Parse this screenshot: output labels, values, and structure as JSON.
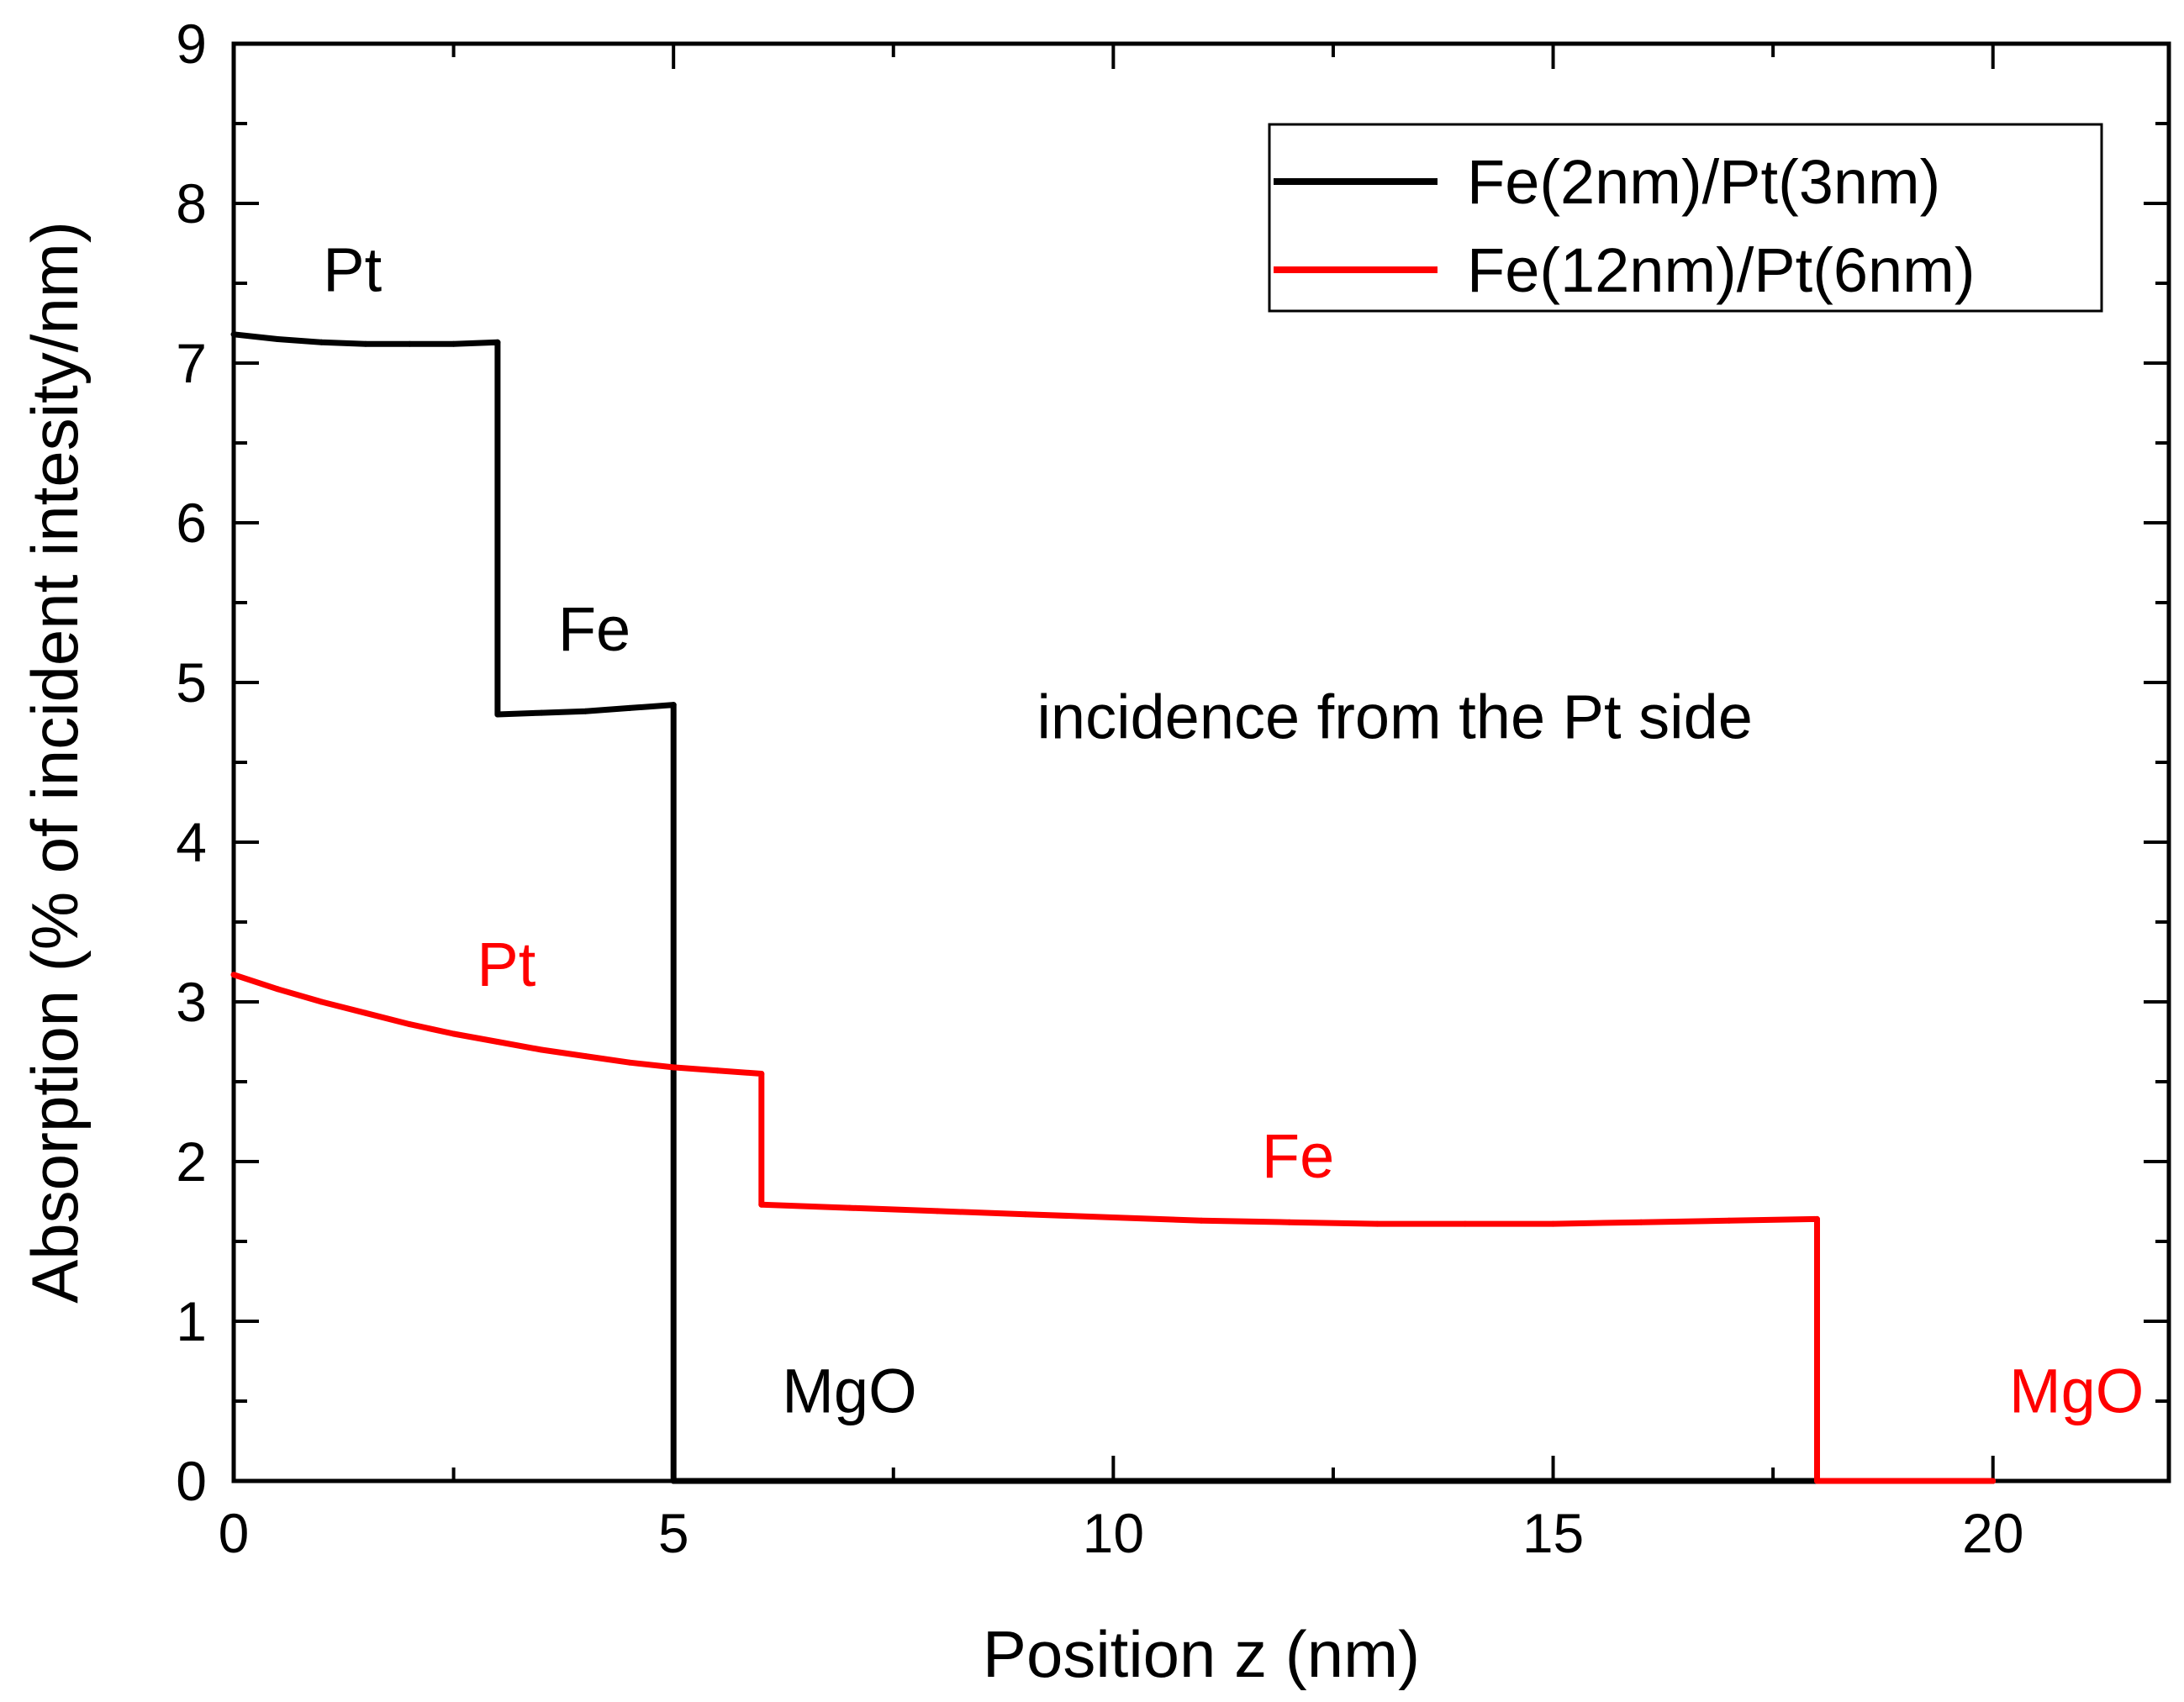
{
  "chart_data": {
    "type": "line",
    "title": "",
    "xlabel": "Position z (nm)",
    "ylabel": "Absorption (% of incident intesity/nm)",
    "xlim": [
      0,
      22
    ],
    "ylim": [
      0,
      9
    ],
    "xticks": [
      0,
      5,
      10,
      15,
      20
    ],
    "yticks": [
      0,
      1,
      2,
      3,
      4,
      5,
      6,
      7,
      8,
      9
    ],
    "x_minor_step": 2.5,
    "y_minor_step": 0.5,
    "grid": false,
    "legend_position": "top-right",
    "series": [
      {
        "name": "Fe(2nm)/Pt(3nm)",
        "color": "#000000",
        "x": [
          0,
          0.5,
          1,
          1.5,
          2,
          2.5,
          3,
          3,
          3.5,
          4,
          4.5,
          5,
          5,
          6,
          8,
          10,
          12,
          14,
          16,
          18,
          20
        ],
        "y": [
          7.18,
          7.15,
          7.13,
          7.12,
          7.12,
          7.12,
          7.13,
          4.8,
          4.81,
          4.82,
          4.84,
          4.86,
          0,
          0,
          0,
          0,
          0,
          0,
          0,
          0,
          0
        ]
      },
      {
        "name": "Fe(12nm)/Pt(6nm)",
        "color": "#ff0000",
        "x": [
          0,
          0.5,
          1,
          1.5,
          2,
          2.5,
          3,
          3.5,
          4,
          4.5,
          5,
          5.5,
          6,
          6,
          7,
          8,
          9,
          10,
          11,
          12,
          13,
          14,
          15,
          16,
          17,
          18,
          18,
          19,
          20
        ],
        "y": [
          3.17,
          3.08,
          3.0,
          2.93,
          2.86,
          2.8,
          2.75,
          2.7,
          2.66,
          2.62,
          2.59,
          2.57,
          2.55,
          1.73,
          1.71,
          1.69,
          1.67,
          1.65,
          1.63,
          1.62,
          1.61,
          1.61,
          1.61,
          1.62,
          1.63,
          1.64,
          0,
          0,
          0
        ]
      }
    ],
    "annotations": [
      {
        "text": "Pt",
        "x": 1.35,
        "y": 7.45,
        "color": "#000000"
      },
      {
        "text": "Fe",
        "x": 4.1,
        "y": 5.2,
        "color": "#000000"
      },
      {
        "text": "incidence from the Pt side",
        "x": 13.2,
        "y": 4.65,
        "color": "#000000"
      },
      {
        "text": "Pt",
        "x": 3.1,
        "y": 3.1,
        "color": "#ff0000"
      },
      {
        "text": "Fe",
        "x": 12.1,
        "y": 1.9,
        "color": "#ff0000"
      },
      {
        "text": "MgO",
        "x": 7.0,
        "y": 0.43,
        "color": "#000000"
      },
      {
        "text": "MgO",
        "x": 20.95,
        "y": 0.43,
        "color": "#ff0000"
      }
    ]
  }
}
